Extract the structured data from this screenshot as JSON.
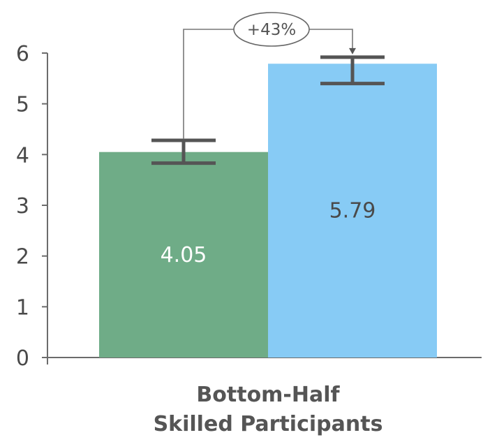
{
  "chart_data": {
    "type": "bar",
    "categories": [
      "Bottom-Half Skilled Participants"
    ],
    "category_label_lines": [
      "Bottom-Half",
      "Skilled Participants"
    ],
    "series": [
      {
        "values": [
          4.05
        ],
        "value_label": "4.05",
        "error": [
          3.83,
          4.28
        ],
        "color": "#6fac87",
        "label_color": "#ffffff"
      },
      {
        "values": [
          5.79
        ],
        "value_label": "5.79",
        "error": [
          5.4,
          5.92
        ],
        "color": "#87cbf5",
        "label_color": "#4a4a4a"
      }
    ],
    "ylim": [
      0,
      6
    ],
    "yticks": [
      "0",
      "1",
      "2",
      "3",
      "4",
      "5",
      "6"
    ],
    "annotation": {
      "text": "+43%",
      "from_series": 0,
      "to_series": 1
    },
    "grid": false,
    "legend": "none",
    "title": "",
    "xlabel": "",
    "ylabel": ""
  }
}
